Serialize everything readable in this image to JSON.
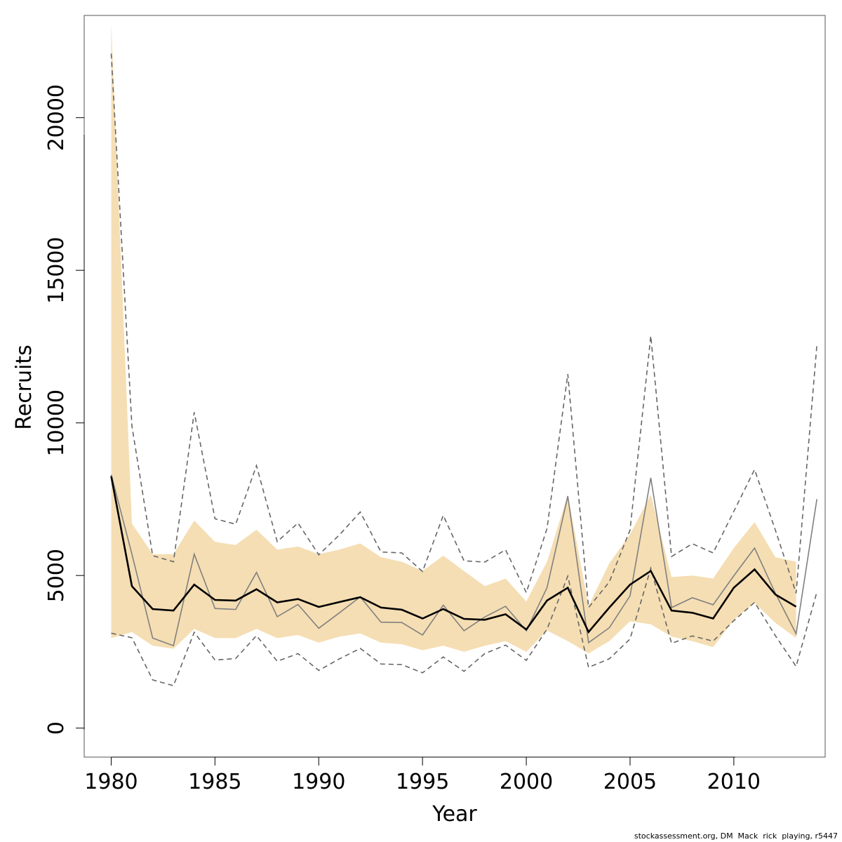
{
  "chart_data": {
    "type": "line",
    "title": "",
    "xlabel": "Year",
    "ylabel": "Recruits",
    "xlim": [
      1978.7,
      2014.4
    ],
    "ylim": [
      -950,
      23350
    ],
    "x_ticks": [
      "1980",
      "1985",
      "1990",
      "1995",
      "2000",
      "2005",
      "2010"
    ],
    "y_ticks": [
      "0",
      "5000",
      "10000",
      "15000",
      "20000"
    ],
    "band_color": "#f5deb3",
    "estimate_color": "#000000",
    "other_color": "#808080",
    "band": {
      "x": [
        1980,
        1981,
        1982,
        1983,
        1984,
        1985,
        1986,
        1987,
        1988,
        1989,
        1990,
        1991,
        1992,
        1993,
        1994,
        1995,
        1996,
        1997,
        1998,
        1999,
        2000,
        2001,
        2002,
        2003,
        2004,
        2005,
        2006,
        2007,
        2008,
        2009,
        2010,
        2011,
        2012,
        2013
      ],
      "lower": [
        2950,
        3150,
        2700,
        2600,
        3250,
        2950,
        2950,
        3250,
        2950,
        3050,
        2800,
        3000,
        3100,
        2800,
        2750,
        2550,
        2700,
        2500,
        2700,
        2850,
        2500,
        3200,
        2850,
        2450,
        2850,
        3500,
        3400,
        3000,
        2850,
        2650,
        3550,
        4100,
        3450,
        2950
      ],
      "upper": [
        23100,
        6700,
        5700,
        5700,
        6800,
        6100,
        6000,
        6500,
        5850,
        5950,
        5700,
        5850,
        6050,
        5600,
        5450,
        5150,
        5650,
        5150,
        4650,
        4900,
        4150,
        5450,
        7650,
        4000,
        5400,
        6350,
        7650,
        4950,
        5000,
        4900,
        5900,
        6750,
        5600,
        5450
      ]
    },
    "series": [
      {
        "line": "solid-thick",
        "x": [
          1980,
          1981,
          1982,
          1983,
          1984,
          1985,
          1986,
          1987,
          1988,
          1989,
          1990,
          1991,
          1992,
          1993,
          1994,
          1995,
          1996,
          1997,
          1998,
          1999,
          2000,
          2001,
          2002,
          2003,
          2004,
          2005,
          2006,
          2007,
          2008,
          2009,
          2010,
          2011,
          2012,
          2013
        ],
        "values": [
          8250,
          4650,
          3900,
          3850,
          4700,
          4200,
          4180,
          4550,
          4120,
          4230,
          3970,
          4130,
          4290,
          3950,
          3880,
          3590,
          3900,
          3580,
          3550,
          3730,
          3230,
          4180,
          4600,
          3150,
          3950,
          4700,
          5150,
          3850,
          3780,
          3590,
          4600,
          5200,
          4380,
          3980
        ]
      },
      {
        "line": "solid-grey",
        "x": [
          1980,
          1981,
          1982,
          1983,
          1984,
          1985,
          1986,
          1987,
          1988,
          1989,
          1990,
          1991,
          1992,
          1993,
          1994,
          1995,
          1996,
          1997,
          1998,
          1999,
          2000,
          2001,
          2002,
          2003,
          2004,
          2005,
          2006,
          2007,
          2008,
          2009,
          2010,
          2011,
          2012,
          2013,
          2014
        ],
        "values": [
          8300,
          5700,
          2950,
          2700,
          5700,
          3920,
          3890,
          5100,
          3650,
          4050,
          3270,
          3780,
          4300,
          3470,
          3460,
          3050,
          4030,
          3190,
          3640,
          3990,
          3190,
          4600,
          7600,
          2800,
          3290,
          4330,
          8200,
          3950,
          4270,
          4040,
          4990,
          5900,
          4420,
          3090,
          7500
        ]
      },
      {
        "line": "dashed-upper",
        "x": [
          1980,
          1981,
          1982,
          1983,
          1984,
          1985,
          1986,
          1987,
          1988,
          1989,
          1990,
          1991,
          1992,
          1993,
          1994,
          1995,
          1996,
          1997,
          1998,
          1999,
          2000,
          2001,
          2002,
          2003,
          2004,
          2005,
          2006,
          2007,
          2008,
          2009,
          2010,
          2011,
          2012,
          2013,
          2014
        ],
        "values": [
          22100,
          9900,
          5650,
          5450,
          10350,
          6860,
          6680,
          8600,
          6110,
          6720,
          5680,
          6330,
          7080,
          5770,
          5740,
          5130,
          6970,
          5480,
          5440,
          5840,
          4440,
          6540,
          11600,
          3950,
          4790,
          6490,
          12850,
          5620,
          6040,
          5740,
          7100,
          8470,
          6490,
          4420,
          12550
        ]
      },
      {
        "line": "dashed-lower",
        "x": [
          1980,
          1981,
          1982,
          1983,
          1984,
          1985,
          1986,
          1987,
          1988,
          1989,
          1990,
          1991,
          1992,
          1993,
          1994,
          1995,
          1996,
          1997,
          1998,
          1999,
          2000,
          2001,
          2002,
          2003,
          2004,
          2005,
          2006,
          2007,
          2008,
          2009,
          2010,
          2011,
          2012,
          2013,
          2014
        ],
        "values": [
          3110,
          2960,
          1580,
          1390,
          3140,
          2230,
          2280,
          3030,
          2190,
          2440,
          1890,
          2270,
          2610,
          2100,
          2080,
          1810,
          2330,
          1860,
          2440,
          2720,
          2220,
          3240,
          4980,
          1990,
          2270,
          2920,
          5240,
          2780,
          3020,
          2850,
          3520,
          4120,
          3030,
          2020,
          4460
        ]
      }
    ],
    "footer_text": "stockassessment.org, DM  Mack  rick  playing, r5447"
  }
}
